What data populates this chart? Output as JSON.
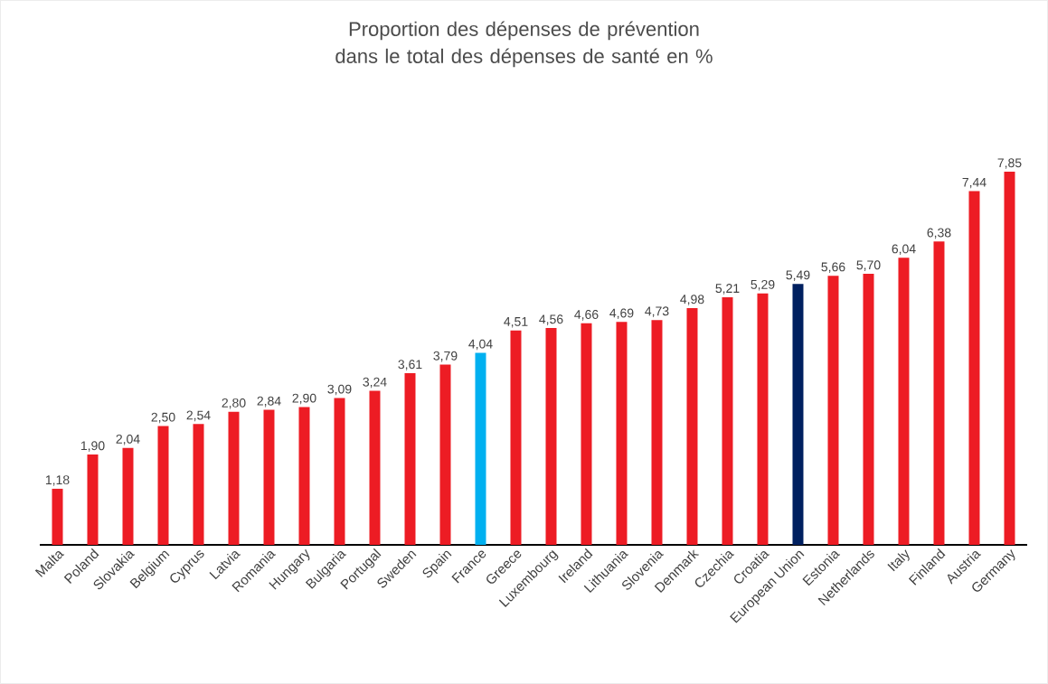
{
  "chart_data": {
    "type": "bar",
    "title": "Proportion des dépenses de prévention dans le total des dépenses de santé en %",
    "categories": [
      "Malta",
      "Poland",
      "Slovakia",
      "Belgium",
      "Cyprus",
      "Latvia",
      "Romania",
      "Hungary",
      "Bulgaria",
      "Portugal",
      "Sweden",
      "Spain",
      "France",
      "Greece",
      "Luxembourg",
      "Ireland",
      "Lithuania",
      "Slovenia",
      "Denmark",
      "Czechia",
      "Croatia",
      "European Union",
      "Estonia",
      "Netherlands",
      "Italy",
      "Finland",
      "Austria",
      "Germany"
    ],
    "values": [
      1.18,
      1.9,
      2.04,
      2.5,
      2.54,
      2.8,
      2.84,
      2.9,
      3.09,
      3.24,
      3.61,
      3.79,
      4.04,
      4.51,
      4.56,
      4.66,
      4.69,
      4.73,
      4.98,
      5.21,
      5.29,
      5.49,
      5.66,
      5.7,
      6.04,
      6.38,
      7.44,
      7.85
    ],
    "value_labels": [
      "1,18",
      "1,90",
      "2,04",
      "2,50",
      "2,54",
      "2,80",
      "2,84",
      "2,90",
      "3,09",
      "3,24",
      "3,61",
      "3,79",
      "4,04",
      "4,51",
      "4,56",
      "4,66",
      "4,69",
      "4,73",
      "4,98",
      "5,21",
      "5,29",
      "5,49",
      "5,66",
      "5,70",
      "6,04",
      "6,38",
      "7,44",
      "7,85"
    ],
    "colors": [
      "#ed1c24",
      "#ed1c24",
      "#ed1c24",
      "#ed1c24",
      "#ed1c24",
      "#ed1c24",
      "#ed1c24",
      "#ed1c24",
      "#ed1c24",
      "#ed1c24",
      "#ed1c24",
      "#ed1c24",
      "#00b0f0",
      "#ed1c24",
      "#ed1c24",
      "#ed1c24",
      "#ed1c24",
      "#ed1c24",
      "#ed1c24",
      "#ed1c24",
      "#ed1c24",
      "#002060",
      "#ed1c24",
      "#ed1c24",
      "#ed1c24",
      "#ed1c24",
      "#ed1c24",
      "#ed1c24"
    ]
  }
}
